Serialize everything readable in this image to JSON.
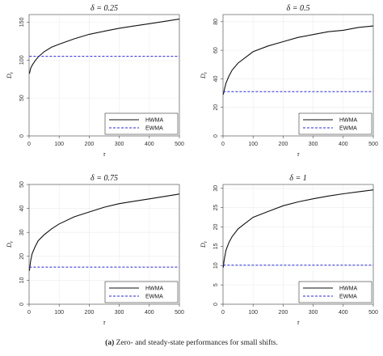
{
  "caption": {
    "label": "(a)",
    "text": "Zero- and steady-state performances for small shifts."
  },
  "chart_data": [
    {
      "type": "line",
      "title": "δ = 0.25",
      "xlabel": "τ",
      "ylabel": "D_τ",
      "xlim": [
        0,
        500
      ],
      "ylim": [
        0,
        160
      ],
      "xticks": [
        0,
        100,
        200,
        300,
        400,
        500
      ],
      "yticks": [
        0,
        50,
        100,
        150
      ],
      "grid": true,
      "legend": "bottom-right",
      "colors": {
        "HWMA": "#111111",
        "EWMA": "#2a2ad0"
      },
      "series": [
        {
          "name": "HWMA",
          "x": [
            1,
            5,
            10,
            20,
            30,
            50,
            75,
            100,
            150,
            200,
            250,
            300,
            350,
            400,
            450,
            500
          ],
          "values": [
            82,
            89,
            93,
            99,
            104,
            111,
            117,
            121,
            128,
            134,
            138,
            142,
            145,
            148,
            151,
            154
          ]
        },
        {
          "name": "EWMA",
          "x": [
            1,
            500
          ],
          "values": [
            105,
            105
          ]
        }
      ]
    },
    {
      "type": "line",
      "title": "δ = 0.5",
      "xlabel": "τ",
      "ylabel": "D_τ",
      "xlim": [
        0,
        500
      ],
      "ylim": [
        0,
        85
      ],
      "xticks": [
        0,
        100,
        200,
        300,
        400,
        500
      ],
      "yticks": [
        0,
        20,
        40,
        60,
        80
      ],
      "grid": true,
      "legend": "bottom-right",
      "colors": {
        "HWMA": "#111111",
        "EWMA": "#2a2ad0"
      },
      "series": [
        {
          "name": "HWMA",
          "x": [
            1,
            3,
            5,
            10,
            20,
            30,
            50,
            75,
            100,
            150,
            200,
            250,
            300,
            350,
            400,
            450,
            500
          ],
          "values": [
            29,
            31,
            33,
            37,
            42,
            46,
            51,
            55,
            59,
            63,
            66,
            69,
            71,
            73,
            74,
            76,
            77
          ]
        },
        {
          "name": "EWMA",
          "x": [
            1,
            500
          ],
          "values": [
            31,
            31
          ]
        }
      ]
    },
    {
      "type": "line",
      "title": "δ = 0.75",
      "xlabel": "τ",
      "ylabel": "D_τ",
      "xlim": [
        0,
        500
      ],
      "ylim": [
        0,
        50
      ],
      "xticks": [
        0,
        100,
        200,
        300,
        400,
        500
      ],
      "yticks": [
        0,
        10,
        20,
        30,
        40,
        50
      ],
      "grid": true,
      "legend": "bottom-right",
      "colors": {
        "HWMA": "#111111",
        "EWMA": "#2a2ad0"
      },
      "series": [
        {
          "name": "HWMA",
          "x": [
            1,
            3,
            5,
            10,
            20,
            30,
            50,
            75,
            100,
            150,
            200,
            250,
            300,
            350,
            400,
            450,
            500
          ],
          "values": [
            14,
            16,
            18,
            21,
            24,
            26.5,
            29,
            31.5,
            33.5,
            36.5,
            38.5,
            40.5,
            42,
            43,
            44,
            45,
            46
          ]
        },
        {
          "name": "EWMA",
          "x": [
            1,
            500
          ],
          "values": [
            15.5,
            15.5
          ]
        }
      ]
    },
    {
      "type": "line",
      "title": "δ = 1",
      "xlabel": "τ",
      "ylabel": "D_τ",
      "xlim": [
        0,
        500
      ],
      "ylim": [
        0,
        31
      ],
      "xticks": [
        0,
        100,
        200,
        300,
        400,
        500
      ],
      "yticks": [
        0,
        5,
        10,
        15,
        20,
        25,
        30
      ],
      "grid": true,
      "legend": "bottom-right",
      "colors": {
        "HWMA": "#111111",
        "EWMA": "#2a2ad0"
      },
      "series": [
        {
          "name": "HWMA",
          "x": [
            1,
            3,
            5,
            10,
            20,
            30,
            50,
            75,
            100,
            150,
            200,
            250,
            300,
            350,
            400,
            450,
            500
          ],
          "values": [
            9.5,
            11,
            12,
            14,
            16,
            17.5,
            19.5,
            21,
            22.5,
            24,
            25.5,
            26.5,
            27.3,
            28,
            28.6,
            29.1,
            29.6
          ]
        },
        {
          "name": "EWMA",
          "x": [
            1,
            500
          ],
          "values": [
            10.1,
            10.1
          ]
        }
      ]
    }
  ]
}
